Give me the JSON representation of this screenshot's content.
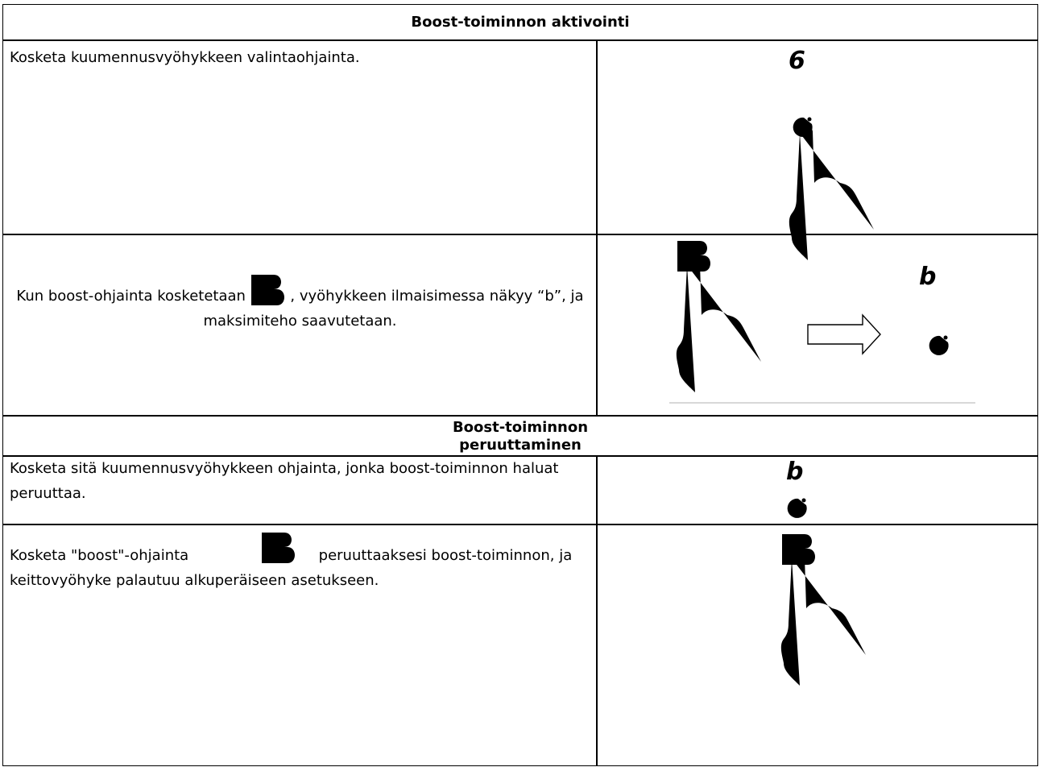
{
  "sections": [
    {
      "title": "Boost-toiminnon aktivointi",
      "rows": [
        {
          "text": "Kosketa kuumennusvyöhykkeen valintaohjainta.",
          "display": "6"
        },
        {
          "text_before": "Kun boost-ohjainta kosketetaan",
          "text_after": ", vyöhykkeen ilmaisimessa näkyy “b”, ja maksimiteho saavutetaan.",
          "display": "b"
        }
      ]
    },
    {
      "title_lines": [
        "Boost-toiminnon",
        "peruuttaminen"
      ],
      "rows": [
        {
          "text": "Kosketa sitä kuumennusvyöhykkeen ohjainta, jonka boost-toiminnon haluat peruuttaa.",
          "display": "b"
        },
        {
          "text_before": "Kosketa \"boost\"-ohjainta",
          "text_after": "peruuttaaksesi boost-toiminnon, ja keittovyöhyke palautuu alkuperäiseen asetukseen."
        }
      ]
    }
  ]
}
